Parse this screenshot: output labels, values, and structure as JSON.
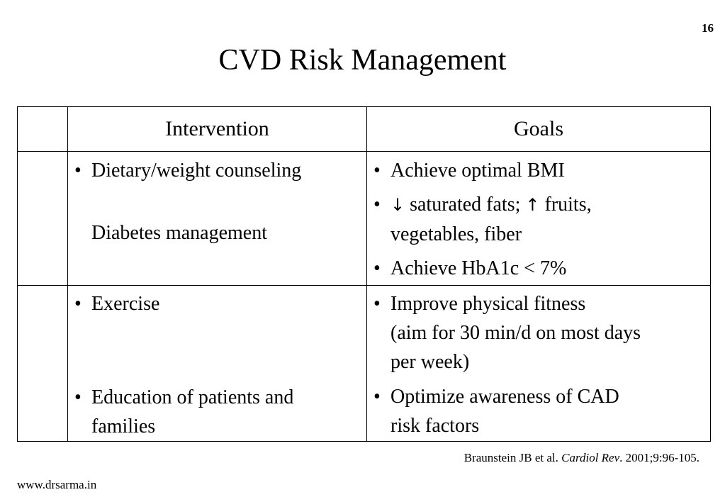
{
  "slide": {
    "number": "16",
    "title": "CVD Risk Management"
  },
  "table": {
    "headers": {
      "intervention": "Intervention",
      "goals": "Goals"
    },
    "row1": {
      "interventions": [
        "Dietary/weight counseling",
        "Diabetes management"
      ],
      "goals": {
        "g1": "Achieve optimal BMI",
        "g2_arrow_down": "↓",
        "g2_part1": " saturated fats; ",
        "g2_arrow_up": "↑",
        "g2_part2": " fruits,",
        "g2_line2": "vegetables, fiber",
        "g3": "Achieve HbA1c < 7%"
      }
    },
    "row2": {
      "intervention1": "Exercise",
      "intervention2_line1": "Education of patients  and",
      "intervention2_line2": "families",
      "goal1_line1": "Improve physical fitness",
      "goal1_line2": "(aim for 30 min/d on most days",
      "goal1_line3": "per week)",
      "goal2_line1": "Optimize awareness of   CAD",
      "goal2_line2": "risk factors"
    }
  },
  "citation": {
    "authors": "Braunstein JB et al. ",
    "journal": "Cardiol Rev",
    "details": ". 2001;9:96-105."
  },
  "footer": {
    "website": "www.drsarma.in"
  }
}
